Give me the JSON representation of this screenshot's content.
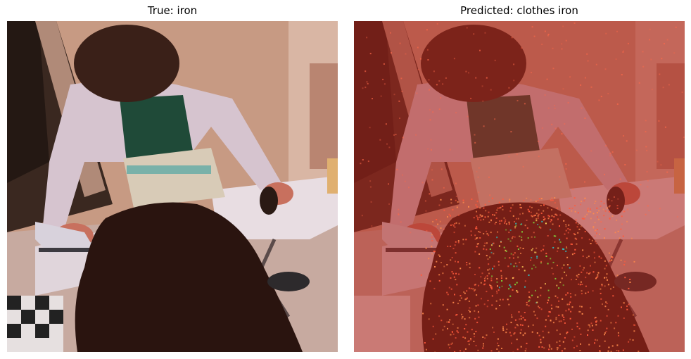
{
  "panels": [
    {
      "title": "True: iron"
    },
    {
      "title": "Predicted: clothes iron"
    }
  ],
  "colors": {
    "background": "#ffffff",
    "saliency_tint": "#c0392b",
    "saliency_hotspot_green": "#7fd13b",
    "saliency_hotspot_cyan": "#2ec4c4"
  }
}
